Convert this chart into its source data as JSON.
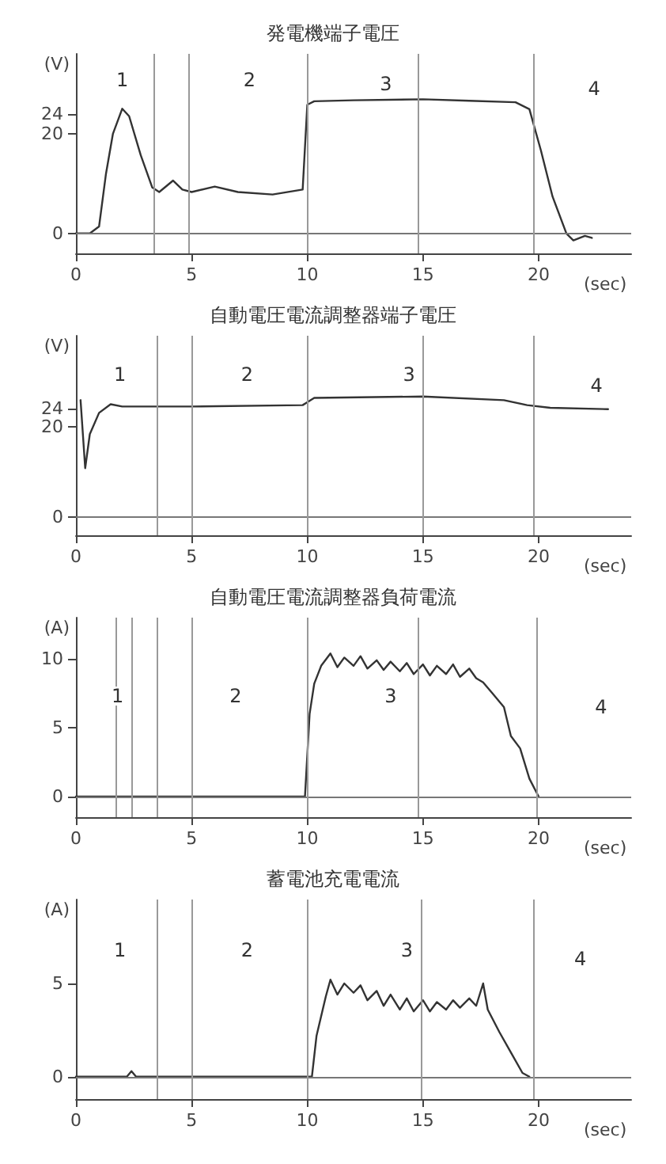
{
  "chart_data": [
    {
      "type": "line",
      "title": "発電機端子電圧",
      "xlabel": "(sec)",
      "ylabel": "(V)",
      "xlim": [
        0,
        24
      ],
      "ylim": [
        -4,
        36
      ],
      "xticks": [
        0,
        5,
        10,
        15,
        20
      ],
      "yticks": [
        0,
        20,
        24
      ],
      "marker": "none",
      "line_style": "solid",
      "x": [
        0,
        0.6,
        1.0,
        1.3,
        1.6,
        2.0,
        2.3,
        2.8,
        3.3,
        3.6,
        4.2,
        4.6,
        5.0,
        6.0,
        7.0,
        8.5,
        9.8,
        10.0,
        10.3,
        12,
        15,
        17,
        19,
        19.6,
        20.1,
        20.6,
        21.2,
        21.5,
        22,
        22.3
      ],
      "series": [
        {
          "color": "#333333",
          "values": [
            0,
            0,
            1.4,
            12,
            20,
            25,
            23.5,
            15.7,
            9.2,
            8.3,
            10.6,
            8.8,
            8.3,
            9.4,
            8.3,
            7.8,
            8.8,
            25.8,
            26.5,
            26.7,
            26.9,
            26.6,
            26.3,
            24.9,
            16.6,
            7.4,
            0,
            -1.4,
            -0.5,
            -0.9
          ]
        }
      ],
      "ref_lines": [
        {
          "axis": "y",
          "value": 0,
          "color": "#777777"
        },
        {
          "axis": "x",
          "value": 3.4,
          "color": "#999999"
        },
        {
          "axis": "x",
          "value": 4.9,
          "color": "#999999"
        },
        {
          "axis": "x",
          "value": 10,
          "color": "#999999"
        },
        {
          "axis": "x",
          "value": 14.8,
          "color": "#999999"
        },
        {
          "axis": "x",
          "value": 19.8,
          "color": "#999999"
        }
      ],
      "annotations": [
        {
          "text": "1",
          "x": 2,
          "y": 30.7
        },
        {
          "text": "2",
          "x": 7.5,
          "y": 30.7
        },
        {
          "text": "3",
          "x": 13.4,
          "y": 30
        },
        {
          "text": "4",
          "x": 22.4,
          "y": 29
        }
      ]
    },
    {
      "type": "line",
      "title": "自動電圧電流調整器端子電圧",
      "xlabel": "(sec)",
      "ylabel": "(V)",
      "xlim": [
        0,
        24
      ],
      "ylim": [
        -4,
        40
      ],
      "xticks": [
        0,
        5,
        10,
        15,
        20
      ],
      "yticks": [
        0,
        20,
        24
      ],
      "marker": "none",
      "line_style": "solid",
      "x": [
        0.2,
        0.4,
        0.6,
        1.0,
        1.5,
        2.0,
        5.0,
        9.8,
        10.3,
        15,
        18.5,
        19.5,
        20.5,
        23
      ],
      "series": [
        {
          "color": "#333333",
          "values": [
            25.8,
            10.8,
            18.3,
            23,
            24.9,
            24.4,
            24.4,
            24.7,
            26.3,
            26.6,
            25.8,
            24.7,
            24.1,
            23.8
          ]
        }
      ],
      "ref_lines": [
        {
          "axis": "y",
          "value": 0,
          "color": "#777777"
        },
        {
          "axis": "x",
          "value": 3.5,
          "color": "#999999"
        },
        {
          "axis": "x",
          "value": 5,
          "color": "#999999"
        },
        {
          "axis": "x",
          "value": 10,
          "color": "#999999"
        },
        {
          "axis": "x",
          "value": 15,
          "color": "#999999"
        },
        {
          "axis": "x",
          "value": 19.8,
          "color": "#999999"
        }
      ],
      "annotations": [
        {
          "text": "1",
          "x": 1.9,
          "y": 31.5
        },
        {
          "text": "2",
          "x": 7.4,
          "y": 31.5
        },
        {
          "text": "3",
          "x": 14.4,
          "y": 31.5
        },
        {
          "text": "4",
          "x": 22.5,
          "y": 29
        }
      ]
    },
    {
      "type": "line",
      "title": "自動電圧電流調整器負荷電流",
      "xlabel": "(sec)",
      "ylabel": "(A)",
      "xlim": [
        0,
        24
      ],
      "ylim": [
        -1.5,
        13
      ],
      "xticks": [
        0,
        5,
        10,
        15,
        20
      ],
      "yticks": [
        0,
        5,
        10
      ],
      "marker": "none",
      "line_style": "solid",
      "x": [
        0,
        9.9,
        10.1,
        10.3,
        10.6,
        11,
        11.3,
        11.6,
        12,
        12.3,
        12.6,
        13,
        13.3,
        13.6,
        14,
        14.3,
        14.6,
        15,
        15.3,
        15.6,
        16,
        16.3,
        16.6,
        17,
        17.3,
        17.6,
        18,
        18.5,
        18.8,
        19.2,
        19.6,
        20
      ],
      "series": [
        {
          "color": "#333333",
          "values": [
            0,
            0,
            6,
            8.2,
            9.5,
            10.4,
            9.4,
            10.1,
            9.5,
            10.2,
            9.3,
            9.9,
            9.2,
            9.8,
            9.1,
            9.7,
            8.9,
            9.6,
            8.8,
            9.5,
            8.9,
            9.6,
            8.7,
            9.3,
            8.6,
            8.3,
            7.5,
            6.5,
            4.4,
            3.5,
            1.3,
            0
          ]
        }
      ],
      "ref_lines": [
        {
          "axis": "y",
          "value": 0,
          "color": "#777777"
        },
        {
          "axis": "x",
          "value": 1.7,
          "color": "#999999"
        },
        {
          "axis": "x",
          "value": 2.4,
          "color": "#999999"
        },
        {
          "axis": "x",
          "value": 3.5,
          "color": "#999999"
        },
        {
          "axis": "x",
          "value": 5,
          "color": "#999999"
        },
        {
          "axis": "x",
          "value": 10,
          "color": "#999999"
        },
        {
          "axis": "x",
          "value": 14.8,
          "color": "#999999"
        },
        {
          "axis": "x",
          "value": 19.9,
          "color": "#999999"
        }
      ],
      "annotations": [
        {
          "text": "1",
          "x": 1.8,
          "y": 7.3
        },
        {
          "text": "2",
          "x": 6.9,
          "y": 7.3
        },
        {
          "text": "3",
          "x": 13.6,
          "y": 7.3
        },
        {
          "text": "4",
          "x": 22.7,
          "y": 6.5
        }
      ]
    },
    {
      "type": "line",
      "title": "蓄電池充電電流",
      "xlabel": "(sec)",
      "ylabel": "(A)",
      "xlim": [
        0,
        24
      ],
      "ylim": [
        -1.2,
        9.5
      ],
      "xticks": [
        0,
        5,
        10,
        15,
        20
      ],
      "yticks": [
        0,
        5
      ],
      "marker": "none",
      "line_style": "solid",
      "x": [
        0,
        2.2,
        2.4,
        2.6,
        10.2,
        10.4,
        10.8,
        11,
        11.3,
        11.6,
        12,
        12.3,
        12.6,
        13,
        13.3,
        13.6,
        14,
        14.3,
        14.6,
        15,
        15.3,
        15.6,
        16,
        16.3,
        16.6,
        17,
        17.3,
        17.6,
        17.8,
        18.3,
        18.8,
        19.3,
        19.6
      ],
      "series": [
        {
          "color": "#333333",
          "values": [
            0,
            0,
            0.3,
            0,
            0,
            2.2,
            4.3,
            5.2,
            4.4,
            5.0,
            4.5,
            4.9,
            4.1,
            4.6,
            3.8,
            4.4,
            3.6,
            4.2,
            3.5,
            4.1,
            3.5,
            4.0,
            3.6,
            4.1,
            3.7,
            4.2,
            3.8,
            5.0,
            3.6,
            2.4,
            1.3,
            0.2,
            0
          ]
        }
      ],
      "ref_lines": [
        {
          "axis": "y",
          "value": 0,
          "color": "#777777"
        },
        {
          "axis": "x",
          "value": 3.5,
          "color": "#999999"
        },
        {
          "axis": "x",
          "value": 5,
          "color": "#999999"
        },
        {
          "axis": "x",
          "value": 10,
          "color": "#999999"
        },
        {
          "axis": "x",
          "value": 14.9,
          "color": "#999999"
        },
        {
          "axis": "x",
          "value": 19.8,
          "color": "#999999"
        }
      ],
      "annotations": [
        {
          "text": "1",
          "x": 1.9,
          "y": 6.8
        },
        {
          "text": "2",
          "x": 7.4,
          "y": 6.8
        },
        {
          "text": "3",
          "x": 14.3,
          "y": 6.8
        },
        {
          "text": "4",
          "x": 21.8,
          "y": 6.3
        }
      ]
    }
  ]
}
